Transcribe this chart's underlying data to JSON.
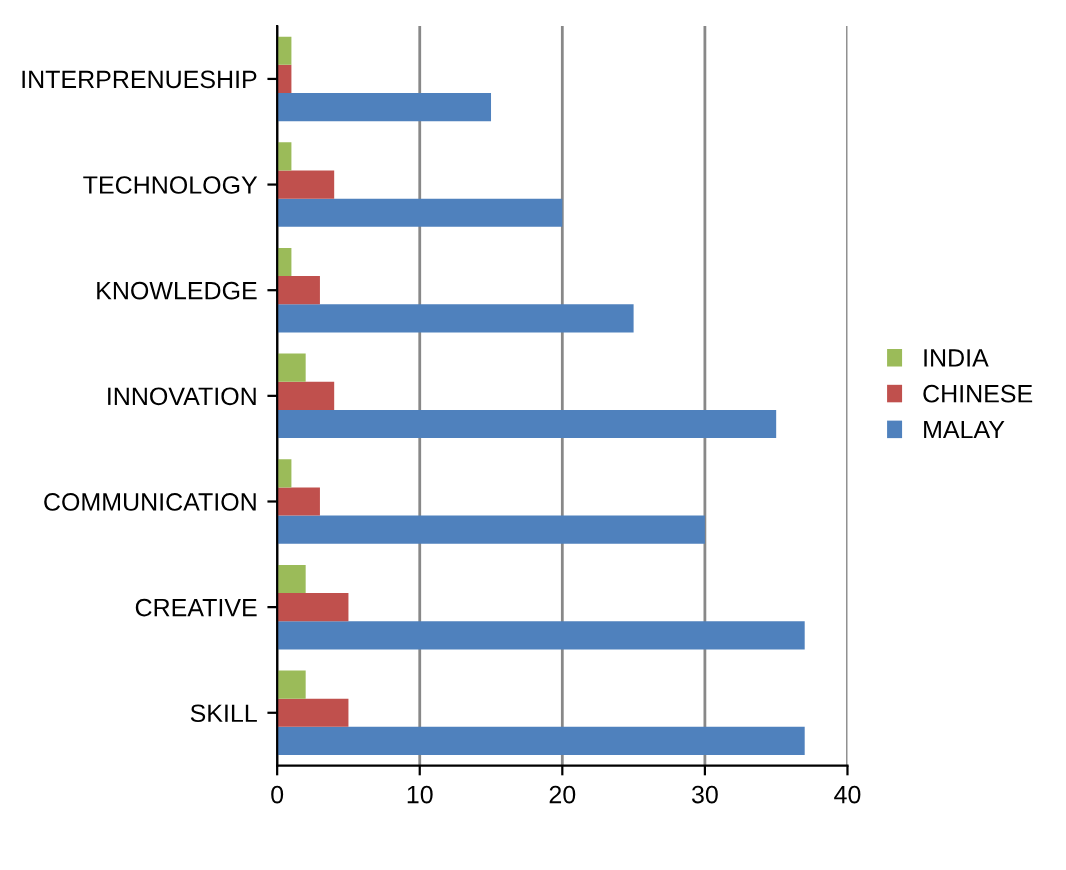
{
  "chart_data": {
    "type": "bar",
    "orientation": "horizontal",
    "categories": [
      "INTERPRENUESHIP",
      "TECHNOLOGY",
      "KNOWLEDGE",
      "INNOVATION",
      "COMMUNICATION",
      "CREATIVE",
      "SKILL"
    ],
    "series": [
      {
        "name": "MALAY",
        "color": "#4f81bd",
        "values": [
          15,
          20,
          25,
          35,
          30,
          37,
          37
        ]
      },
      {
        "name": "CHINESE",
        "color": "#c0504d",
        "values": [
          1,
          4,
          3,
          4,
          3,
          5,
          5
        ]
      },
      {
        "name": "INDIA",
        "color": "#9bbb59",
        "values": [
          1,
          1,
          1,
          2,
          1,
          2,
          2
        ]
      }
    ],
    "xlim": [
      0,
      40
    ],
    "xticks": [
      0,
      10,
      20,
      30,
      40
    ],
    "grid": "x",
    "legend": "right"
  }
}
